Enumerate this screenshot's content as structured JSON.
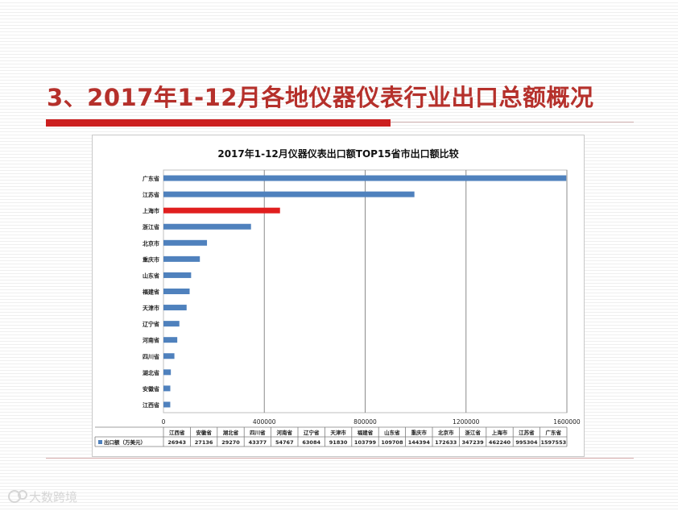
{
  "slide": {
    "title": "3、2017年1-12月各地仪器仪表行业出口总额概况",
    "watermark": "大数跨境"
  },
  "colors": {
    "title": "#b5302b",
    "accent_bar": "#cc1f1f",
    "bar_default": "#4f81bd",
    "bar_highlight": "#e01e1e"
  },
  "chart_data": {
    "type": "bar",
    "orientation": "horizontal",
    "title": "2017年1-12月仪器仪表出口额TOP15省市出口额比较",
    "categories": [
      "江西省",
      "安徽省",
      "湖北省",
      "四川省",
      "河南省",
      "辽宁省",
      "天津市",
      "福建省",
      "山东省",
      "重庆市",
      "北京市",
      "浙江省",
      "上海市",
      "江苏省",
      "广东省"
    ],
    "series": [
      {
        "name": "出口额（万美元）",
        "values": [
          26943,
          27136,
          29270,
          43377,
          54767,
          63084,
          91830,
          103799,
          109708,
          144394,
          172633,
          347239,
          462240,
          995304,
          1597553
        ]
      }
    ],
    "highlight_category": "上海市",
    "xlim": [
      0,
      1600000
    ],
    "xticks": [
      "0",
      "400000",
      "800000",
      "1200000",
      "1600000"
    ],
    "grid": true,
    "data_table": true
  }
}
